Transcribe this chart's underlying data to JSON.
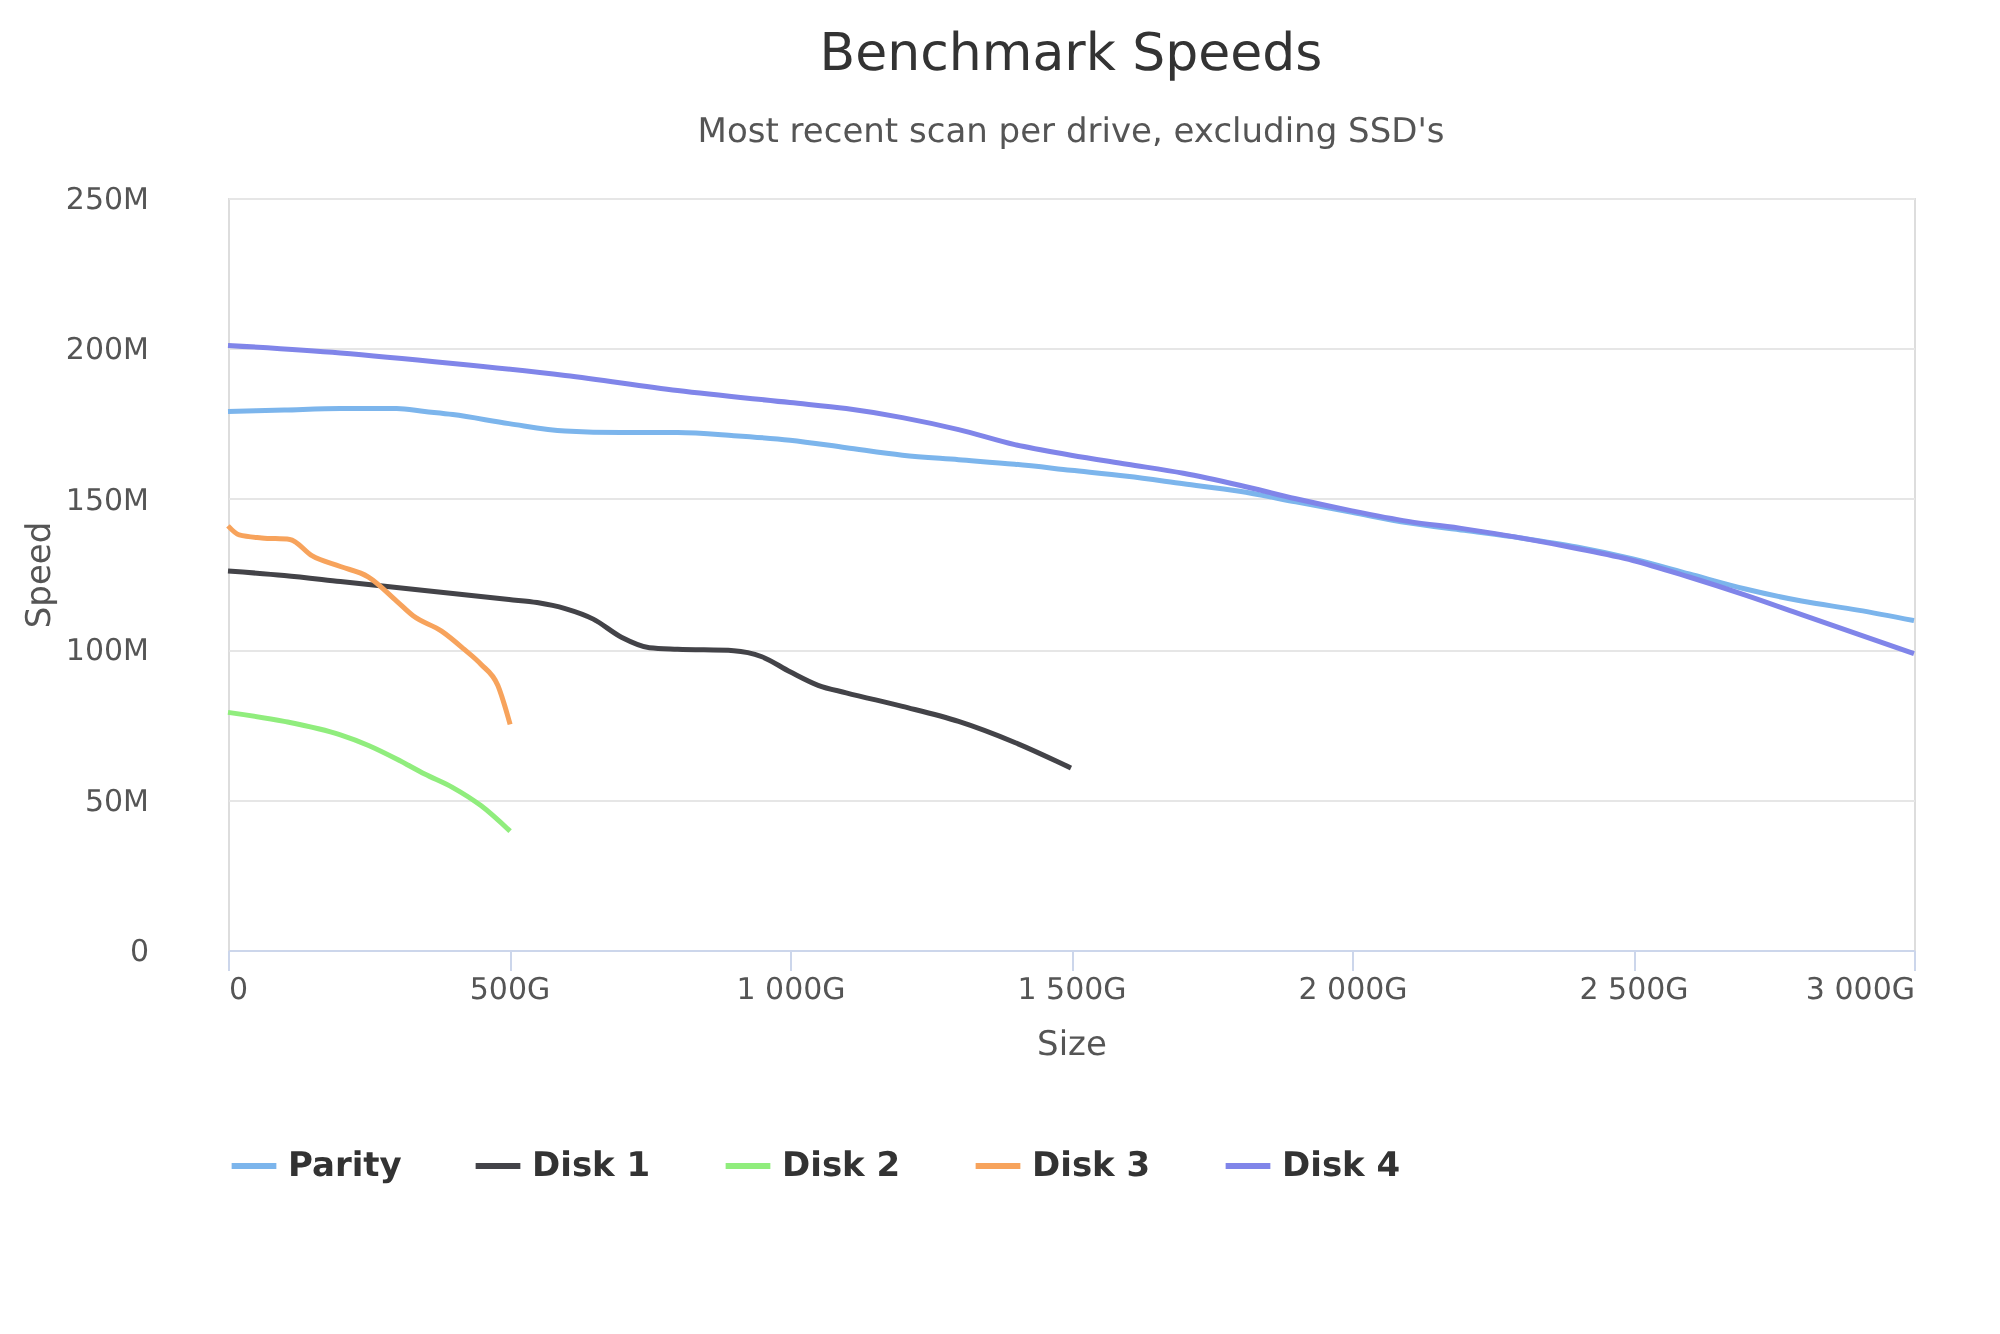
{
  "chart_data": {
    "type": "line",
    "title": "Benchmark Speeds",
    "subtitle": "Most recent scan per drive, excluding SSD's",
    "xlabel": "Size",
    "ylabel": "Speed",
    "xlim": [
      0,
      3000
    ],
    "xticks": [
      0,
      {
        "value": 500,
        "label": "500G"
      },
      {
        "value": 1000,
        "label": "1 000G"
      },
      {
        "value": 1500,
        "label": "1 500G"
      },
      {
        "value": 2000,
        "label": "2 000G"
      },
      {
        "value": 2500,
        "label": "2 500G"
      },
      {
        "value": 3000,
        "label": "3 000G"
      }
    ],
    "ylim": [
      0,
      250
    ],
    "yticks": [
      0,
      {
        "value": 50,
        "label": "50M"
      },
      {
        "value": 100,
        "label": "100M"
      },
      {
        "value": 150,
        "label": "150M"
      },
      {
        "value": 200,
        "label": "200M"
      },
      {
        "value": 250,
        "label": "250M"
      }
    ],
    "grid": "y",
    "legend": "bottom",
    "marker": "none",
    "line_style": "solid",
    "series": [
      {
        "name": "Parity",
        "color": "#7cb5ec",
        "x": [
          0,
          100,
          200,
          300,
          350,
          400,
          500,
          600,
          700,
          800,
          900,
          1000,
          1100,
          1200,
          1300,
          1400,
          1500,
          1600,
          1700,
          1800,
          1900,
          2000,
          2100,
          2200,
          2300,
          2400,
          2500,
          2600,
          2700,
          2800,
          2900,
          3000
        ],
        "values": [
          179,
          179.5,
          180,
          180,
          179,
          178,
          175,
          172.5,
          172,
          172,
          171,
          169.5,
          167,
          164.5,
          163,
          161.5,
          159.5,
          157.5,
          155,
          152.5,
          149,
          145.5,
          142,
          139.5,
          137,
          134,
          130,
          125,
          120,
          116,
          113,
          109.5
        ]
      },
      {
        "name": "Disk 1",
        "color": "#434348",
        "x": [
          0,
          100,
          200,
          300,
          400,
          500,
          550,
          600,
          650,
          700,
          750,
          800,
          900,
          950,
          1000,
          1050,
          1100,
          1200,
          1300,
          1400,
          1500
        ],
        "values": [
          126,
          124.5,
          122.5,
          120.5,
          118.5,
          116.5,
          115.5,
          113.5,
          110,
          104,
          100.5,
          100,
          99.5,
          97.5,
          92.5,
          88,
          85.5,
          81,
          76,
          69,
          60.5
        ]
      },
      {
        "name": "Disk 2",
        "color": "#90ed7d",
        "x": [
          0,
          100,
          200,
          250,
          300,
          350,
          400,
          450,
          502
        ],
        "values": [
          79,
          76,
          71.5,
          68,
          63.5,
          58.5,
          54,
          48,
          39.5
        ]
      },
      {
        "name": "Disk 3",
        "color": "#f7a35c",
        "x": [
          0,
          20,
          60,
          110,
          150,
          200,
          250,
          300,
          330,
          380,
          420,
          450,
          480,
          502
        ],
        "values": [
          141,
          138,
          137,
          136.5,
          131,
          127.5,
          124,
          116,
          111,
          106,
          100,
          95,
          88,
          75
        ]
      },
      {
        "name": "Disk 4",
        "color": "#8085e9",
        "x": [
          0,
          200,
          400,
          600,
          800,
          1000,
          1100,
          1200,
          1300,
          1400,
          1500,
          1600,
          1700,
          1800,
          1900,
          2000,
          2100,
          2200,
          2300,
          2400,
          2500,
          2600,
          2700,
          2800,
          2900,
          3000
        ],
        "values": [
          201,
          198.5,
          195,
          191,
          186,
          182,
          180,
          177,
          173,
          168,
          164.5,
          161.5,
          158.5,
          154.5,
          150,
          146,
          142.5,
          140,
          137,
          133.5,
          129.5,
          124,
          118,
          111.5,
          105,
          98.5
        ]
      }
    ]
  }
}
